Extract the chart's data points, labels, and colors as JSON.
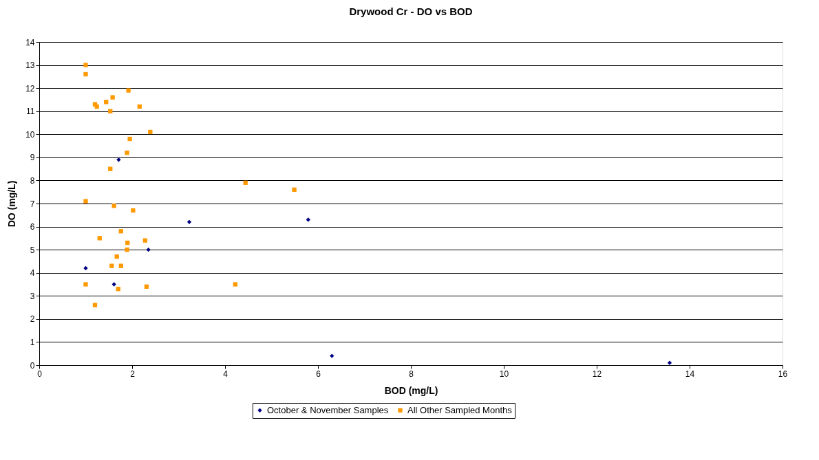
{
  "chart_data": {
    "type": "scatter",
    "title": "Drywood Cr - DO vs BOD",
    "xlabel": "BOD (mg/L)",
    "ylabel": "DO (mg/L)",
    "xlim": [
      0,
      16
    ],
    "xticks": [
      0,
      2,
      4,
      6,
      8,
      10,
      12,
      14,
      16
    ],
    "ylim": [
      0,
      14
    ],
    "yticks": [
      0,
      1,
      2,
      3,
      4,
      5,
      6,
      7,
      8,
      9,
      10,
      11,
      12,
      13,
      14
    ],
    "grid": "y",
    "legend": "bottom",
    "series": [
      {
        "name": "October & November Samples",
        "color": "#000080",
        "marker": "diamond",
        "x": [
          1.71,
          3.23,
          5.79,
          2.35,
          1.0,
          1.61,
          6.3,
          13.57
        ],
        "values": [
          8.9,
          6.2,
          6.3,
          5.0,
          4.2,
          3.5,
          0.4,
          0.1
        ]
      },
      {
        "name": "All Other Sampled Months",
        "color": "#ff9900",
        "marker": "square",
        "x": [
          1.0,
          1.0,
          1.2,
          1.24,
          1.58,
          1.44,
          1.53,
          1.92,
          2.16,
          2.39,
          1.95,
          1.89,
          1.53,
          4.44,
          5.49,
          1.0,
          1.61,
          2.02,
          1.76,
          1.3,
          2.28,
          1.9,
          1.89,
          1.67,
          1.56,
          1.76,
          1.0,
          1.7,
          2.31,
          4.22,
          1.2
        ],
        "values": [
          13.0,
          12.6,
          11.3,
          11.2,
          11.6,
          11.4,
          11.0,
          11.9,
          11.2,
          10.1,
          9.8,
          9.2,
          8.5,
          7.9,
          7.6,
          7.1,
          6.9,
          6.7,
          5.8,
          5.5,
          5.4,
          5.3,
          5.0,
          4.7,
          4.3,
          4.3,
          3.5,
          3.3,
          3.4,
          3.5,
          2.6
        ]
      }
    ]
  }
}
